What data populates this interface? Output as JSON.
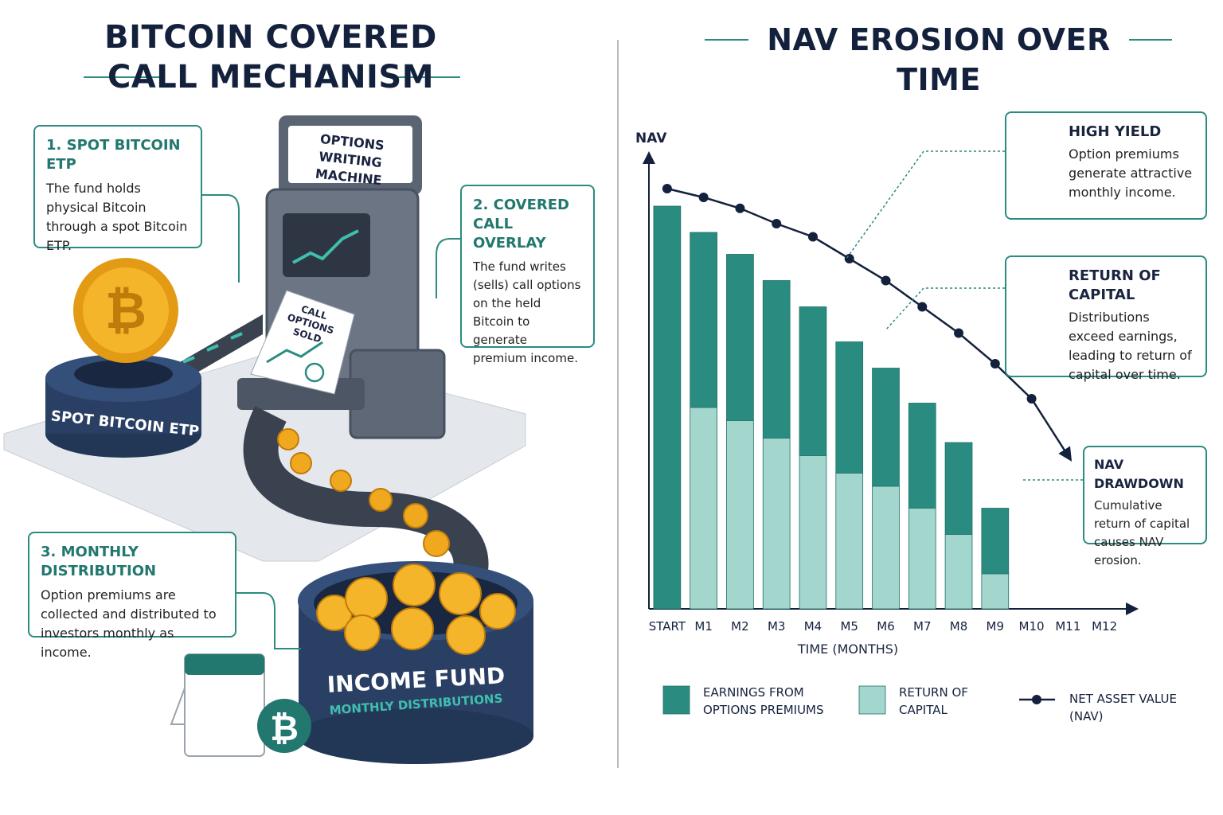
{
  "left": {
    "title": "BITCOIN COVERED CALL MECHANISM",
    "steps": [
      {
        "title": "1. SPOT BITCOIN ETP",
        "text": "The fund holds physical Bitcoin through a spot Bitcoin ETP."
      },
      {
        "title": "2. COVERED CALL OVERLAY",
        "text": "The fund writes (sells) call options on the held Bitcoin to generate premium income."
      },
      {
        "title": "3. MONTHLY DISTRIBUTION",
        "text": "Option premiums are collected and distributed to investors monthly as income."
      }
    ],
    "machine_label": "OPTIONS WRITING MACHINE",
    "ticket_label": "CALL OPTIONS SOLD",
    "etp_label": "SPOT BITCOIN ETP",
    "fund_label": "INCOME FUND",
    "fund_sublabel": "MONTHLY DISTRIBUTIONS"
  },
  "chart_data": {
    "type": "bar",
    "stacked": true,
    "title": "NAV EROSION OVER TIME",
    "y_label": "NAV",
    "x_label": "TIME (MONTHS)",
    "categories": [
      "START",
      "M1",
      "M2",
      "M3",
      "M4",
      "M5",
      "M6",
      "M7",
      "M8",
      "M9",
      "M10",
      "M11",
      "M12"
    ],
    "ylim": [
      0,
      100
    ],
    "series": [
      {
        "name": "EARNINGS FROM OPTIONS PREMIUMS",
        "color": "#2a8c80",
        "values": [
          92,
          40,
          38,
          36,
          34,
          30,
          27,
          24,
          21,
          15,
          null,
          null,
          null
        ]
      },
      {
        "name": "RETURN OF CAPITAL",
        "color": "#a3d6cd",
        "values": [
          0,
          46,
          43,
          39,
          35,
          31,
          28,
          23,
          17,
          8,
          null,
          null,
          null
        ]
      },
      {
        "name": "NET ASSET VALUE (NAV)",
        "color": "#14213d",
        "type": "line",
        "values": [
          96,
          94,
          91.5,
          88,
          85,
          80,
          75,
          69,
          63,
          56,
          48,
          35,
          null
        ]
      }
    ],
    "annotations": [
      {
        "title": "HIGH YIELD",
        "text": "Option premiums generate attractive monthly income."
      },
      {
        "title": "RETURN OF CAPITAL",
        "text": "Distributions exceed earnings, leading to return of capital over time."
      },
      {
        "title": "NAV DRAWDOWN",
        "text": "Cumulative return of capital causes NAV erosion."
      }
    ]
  }
}
